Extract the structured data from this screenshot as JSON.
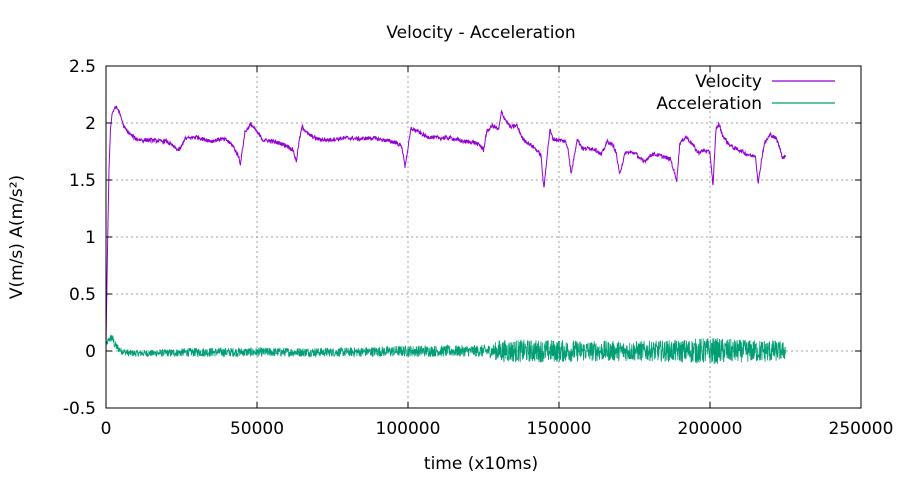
{
  "chart_data": {
    "type": "line",
    "title": "Velocity - Acceleration",
    "xlabel": "time (x10ms)",
    "ylabel": "V(m/s) A(m/s²)",
    "xlim": [
      0,
      250000
    ],
    "ylim": [
      -0.5,
      2.5
    ],
    "x_ticks": [
      0,
      50000,
      100000,
      150000,
      200000,
      250000
    ],
    "x_tick_labels": [
      "0",
      "50000",
      "100000",
      "150000",
      "200000",
      "250000"
    ],
    "y_ticks": [
      -0.5,
      0,
      0.5,
      1,
      1.5,
      2,
      2.5
    ],
    "y_tick_labels": [
      "-0.5",
      "0",
      "0.5",
      "1",
      "1.5",
      "2",
      "2.5"
    ],
    "grid": true,
    "legend_position": "top-right",
    "series": [
      {
        "name": "Velocity",
        "color": "#9400d3",
        "x": [
          0,
          500,
          1000,
          1500,
          2000,
          3000,
          4000,
          5000,
          6000,
          8000,
          10000,
          12000,
          15000,
          18000,
          20000,
          22000,
          24000,
          25000,
          26000,
          28000,
          30000,
          32000,
          35000,
          38000,
          40000,
          42000,
          44000,
          44500,
          46000,
          48000,
          50000,
          52000,
          55000,
          58000,
          60000,
          62000,
          63000,
          64000,
          65000,
          67000,
          70000,
          73000,
          76000,
          80000,
          84000,
          88000,
          92000,
          96000,
          98000,
          99000,
          100000,
          101000,
          103000,
          106000,
          110000,
          114000,
          118000,
          122000,
          124000,
          125000,
          126000,
          128000,
          130000,
          131000,
          132000,
          134000,
          136000,
          138000,
          140000,
          142000,
          144000,
          145000,
          146000,
          147000,
          148000,
          150000,
          152000,
          153000,
          154000,
          156000,
          158000,
          160000,
          162000,
          164000,
          166000,
          168000,
          169000,
          170000,
          172000,
          175000,
          178000,
          181000,
          184000,
          187000,
          188000,
          189000,
          190000,
          192000,
          194000,
          196000,
          198000,
          200000,
          201000,
          202000,
          203000,
          204000,
          206000,
          208000,
          210000,
          212000,
          214000,
          215000,
          216000,
          217000,
          218000,
          220000,
          222000,
          223000,
          224000,
          225000
        ],
        "values": [
          0.05,
          0.9,
          1.6,
          1.95,
          2.08,
          2.14,
          2.12,
          2.05,
          1.96,
          1.9,
          1.86,
          1.85,
          1.85,
          1.84,
          1.84,
          1.8,
          1.76,
          1.79,
          1.86,
          1.87,
          1.88,
          1.86,
          1.84,
          1.86,
          1.85,
          1.8,
          1.7,
          1.64,
          1.92,
          1.99,
          1.92,
          1.85,
          1.84,
          1.82,
          1.8,
          1.76,
          1.66,
          1.85,
          1.97,
          1.9,
          1.86,
          1.85,
          1.86,
          1.87,
          1.86,
          1.87,
          1.85,
          1.83,
          1.79,
          1.62,
          1.78,
          1.95,
          1.93,
          1.88,
          1.87,
          1.87,
          1.84,
          1.83,
          1.8,
          1.76,
          1.92,
          1.98,
          1.94,
          2.1,
          2.04,
          1.96,
          1.98,
          1.86,
          1.82,
          1.78,
          1.72,
          1.42,
          1.7,
          1.94,
          1.86,
          1.85,
          1.84,
          1.78,
          1.55,
          1.86,
          1.77,
          1.78,
          1.77,
          1.72,
          1.84,
          1.8,
          1.73,
          1.55,
          1.74,
          1.74,
          1.66,
          1.73,
          1.71,
          1.68,
          1.58,
          1.5,
          1.82,
          1.88,
          1.82,
          1.74,
          1.76,
          1.74,
          1.45,
          1.95,
          1.99,
          1.9,
          1.82,
          1.78,
          1.76,
          1.73,
          1.71,
          1.72,
          1.47,
          1.67,
          1.82,
          1.9,
          1.86,
          1.79,
          1.7,
          1.7
        ]
      },
      {
        "name": "Acceleration",
        "color": "#009e73",
        "x": [
          0,
          1000,
          2000,
          3000,
          5000,
          8000,
          15000,
          30000,
          50000,
          80000,
          100000,
          120000,
          128000,
          130000,
          140000,
          150000,
          160000,
          170000,
          180000,
          190000,
          200000,
          210000,
          220000,
          225000
        ],
        "values": [
          0.05,
          0.1,
          0.12,
          0.05,
          0.0,
          -0.02,
          -0.02,
          -0.01,
          -0.01,
          -0.01,
          0.0,
          0.0,
          0.0,
          0.0,
          0.0,
          0.0,
          0.0,
          0.0,
          0.0,
          0.0,
          0.0,
          0.0,
          0.0,
          0.0
        ],
        "noise_amplitude": [
          0.02,
          0.03,
          0.04,
          0.04,
          0.03,
          0.03,
          0.03,
          0.04,
          0.04,
          0.04,
          0.05,
          0.05,
          0.06,
          0.1,
          0.1,
          0.1,
          0.09,
          0.09,
          0.09,
          0.1,
          0.12,
          0.1,
          0.1,
          0.08
        ]
      }
    ]
  }
}
